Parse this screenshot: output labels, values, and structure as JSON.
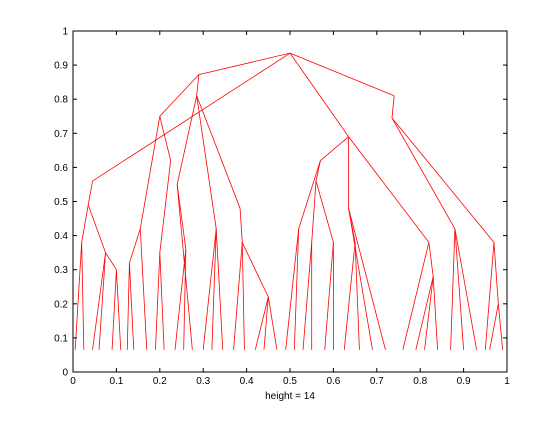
{
  "chart_data": {
    "type": "tree",
    "xlabel": "height = 14",
    "color": "#ff0000",
    "x": [
      0.5,
      0.29,
      0.74,
      0.635,
      0.045,
      0.2,
      0.285,
      0.735,
      0.57,
      0.82,
      0.035,
      0.225,
      0.155,
      0.385,
      0.24,
      0.97,
      0.88,
      0.56,
      0.52,
      0.635,
      0.02,
      0.075,
      0.39,
      0.33,
      0.13,
      0.2,
      0.26,
      0.55,
      0.6,
      0.65,
      0.98,
      0.83,
      0.1,
      0.45,
      0.005,
      0.025,
      0.045,
      0.06,
      0.09,
      0.11,
      0.125,
      0.14,
      0.17,
      0.19,
      0.21,
      0.235,
      0.255,
      0.275,
      0.3,
      0.32,
      0.345,
      0.37,
      0.395,
      0.42,
      0.44,
      0.47,
      0.49,
      0.51,
      0.53,
      0.55,
      0.58,
      0.6,
      0.625,
      0.66,
      0.69,
      0.72,
      0.76,
      0.79,
      0.81,
      0.84,
      0.87,
      0.9,
      0.93,
      0.96,
      0.99,
      0.95
    ],
    "y": [
      0.935,
      0.872,
      0.81,
      0.69,
      0.56,
      0.75,
      0.81,
      0.745,
      0.62,
      0.38,
      0.49,
      0.62,
      0.42,
      0.48,
      0.55,
      0.38,
      0.42,
      0.56,
      0.42,
      0.48,
      0.38,
      0.35,
      0.38,
      0.42,
      0.32,
      0.35,
      0.36,
      0.38,
      0.38,
      0.38,
      0.2,
      0.28,
      0.3,
      0.22,
      0.065,
      0.065,
      0.065,
      0.065,
      0.065,
      0.065,
      0.065,
      0.065,
      0.065,
      0.065,
      0.065,
      0.065,
      0.065,
      0.065,
      0.065,
      0.065,
      0.065,
      0.065,
      0.065,
      0.065,
      0.065,
      0.065,
      0.065,
      0.065,
      0.065,
      0.065,
      0.065,
      0.065,
      0.065,
      0.065,
      0.065,
      0.065,
      0.065,
      0.065,
      0.065,
      0.065,
      0.065,
      0.065,
      0.065,
      0.065,
      0.065,
      0.065
    ],
    "parent": [
      null,
      0,
      0,
      0,
      0,
      1,
      1,
      2,
      3,
      3,
      4,
      5,
      5,
      6,
      6,
      7,
      7,
      8,
      8,
      3,
      10,
      10,
      13,
      6,
      12,
      11,
      14,
      17,
      17,
      19,
      15,
      9,
      21,
      22,
      20,
      20,
      21,
      21,
      32,
      32,
      24,
      24,
      12,
      25,
      25,
      26,
      26,
      14,
      23,
      23,
      23,
      22,
      22,
      33,
      33,
      33,
      18,
      18,
      27,
      27,
      28,
      28,
      29,
      29,
      19,
      19,
      9,
      31,
      31,
      31,
      16,
      16,
      16,
      30,
      30,
      15
    ],
    "xlim": [
      0,
      1
    ],
    "ylim": [
      0,
      1
    ],
    "xticks": [
      0,
      0.1,
      0.2,
      0.3,
      0.4,
      0.5,
      0.6,
      0.7,
      0.8,
      0.9,
      1
    ],
    "yticks": [
      0,
      0.1,
      0.2,
      0.3,
      0.4,
      0.5,
      0.6,
      0.7,
      0.8,
      0.9,
      1
    ]
  }
}
